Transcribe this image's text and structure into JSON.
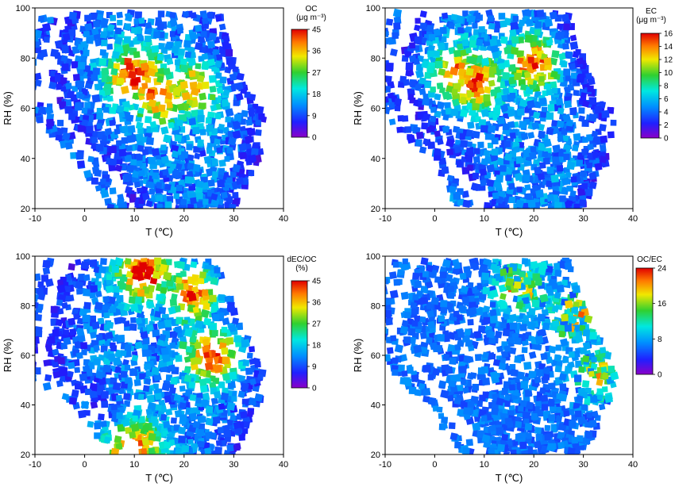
{
  "chart_data": [
    {
      "type": "scatter",
      "panel": "top-left",
      "xlabel": "T (℃)",
      "ylabel": "RH (%)",
      "xlim": [
        -10,
        40
      ],
      "ylim": [
        20,
        100
      ],
      "xticks": [
        "-10",
        "0",
        "10",
        "20",
        "30",
        "40"
      ],
      "yticks": [
        "20",
        "40",
        "60",
        "80",
        "100"
      ],
      "colorbar": {
        "title_lines": [
          "OC",
          "(μg m⁻³)"
        ],
        "range": [
          0,
          45
        ],
        "ticks": [
          "0",
          "9",
          "18",
          "27",
          "36",
          "45"
        ]
      },
      "footprint": {
        "rh": [
          20,
          40,
          55,
          70,
          85,
          98
        ],
        "tmin": [
          11,
          4,
          -3,
          -7,
          -6,
          -3
        ],
        "tmax": [
          30,
          35,
          37,
          32,
          29,
          27
        ]
      },
      "hot_spots": [
        {
          "t": 10,
          "rh": 73,
          "v": 38
        },
        {
          "t": 15,
          "rh": 65,
          "v": 33
        },
        {
          "t": 22,
          "rh": 68,
          "v": 28
        }
      ]
    },
    {
      "type": "scatter",
      "panel": "top-right",
      "xlabel": "T (℃)",
      "ylabel": "RH (%)",
      "xlim": [
        -10,
        40
      ],
      "ylim": [
        20,
        100
      ],
      "xticks": [
        "-10",
        "0",
        "10",
        "20",
        "30",
        "40"
      ],
      "yticks": [
        "20",
        "40",
        "60",
        "80",
        "100"
      ],
      "colorbar": {
        "title_lines": [
          "EC",
          "(μg m⁻³)"
        ],
        "range": [
          0,
          16
        ],
        "ticks": [
          "0",
          "2",
          "4",
          "6",
          "8",
          "10",
          "12",
          "14",
          "16"
        ]
      },
      "footprint": {
        "rh": [
          20,
          40,
          55,
          70,
          85,
          98
        ],
        "tmin": [
          11,
          4,
          -3,
          -7,
          -6,
          -3
        ],
        "tmax": [
          30,
          35,
          37,
          32,
          29,
          27
        ]
      },
      "hot_spots": [
        {
          "t": 8,
          "rh": 70,
          "v": 13
        },
        {
          "t": 20,
          "rh": 78,
          "v": 12
        },
        {
          "t": 4,
          "rh": 75,
          "v": 10
        }
      ]
    },
    {
      "type": "scatter",
      "panel": "bottom-left",
      "xlabel": "T (℃)",
      "ylabel": "RH (%)",
      "xlim": [
        -10,
        40
      ],
      "ylim": [
        20,
        100
      ],
      "xticks": [
        "-10",
        "0",
        "10",
        "20",
        "30",
        "40"
      ],
      "yticks": [
        "20",
        "40",
        "60",
        "80",
        "100"
      ],
      "colorbar": {
        "title_lines": [
          "dEC/OC",
          "(%)"
        ],
        "range": [
          0,
          45
        ],
        "ticks": [
          "0",
          "9",
          "18",
          "27",
          "36",
          "45"
        ]
      },
      "footprint": {
        "rh": [
          20,
          40,
          55,
          70,
          85,
          98
        ],
        "tmin": [
          11,
          4,
          -8,
          -7,
          -6,
          -3
        ],
        "tmax": [
          30,
          35,
          37,
          32,
          29,
          27
        ]
      },
      "hot_spots": [
        {
          "t": 12,
          "rh": 93,
          "v": 40
        },
        {
          "t": 26,
          "rh": 60,
          "v": 38
        },
        {
          "t": 10,
          "rh": 23,
          "v": 40
        },
        {
          "t": 22,
          "rh": 85,
          "v": 34
        }
      ]
    },
    {
      "type": "scatter",
      "panel": "bottom-right",
      "xlabel": "T (℃)",
      "ylabel": "RH (%)",
      "xlim": [
        -10,
        40
      ],
      "ylim": [
        20,
        100
      ],
      "xticks": [
        "-10",
        "0",
        "10",
        "20",
        "30",
        "40"
      ],
      "yticks": [
        "20",
        "40",
        "60",
        "80",
        "100"
      ],
      "colorbar": {
        "title_lines": [
          "OC/EC"
        ],
        "range": [
          0,
          24
        ],
        "ticks": [
          "0",
          "8",
          "16",
          "24"
        ]
      },
      "footprint": {
        "rh": [
          20,
          40,
          55,
          70,
          85,
          98
        ],
        "tmin": [
          11,
          4,
          -3,
          -7,
          -6,
          -3
        ],
        "tmax": [
          30,
          35,
          37,
          32,
          29,
          27
        ]
      },
      "hot_spots": [
        {
          "t": 17,
          "rh": 88,
          "v": 22
        },
        {
          "t": 28,
          "rh": 76,
          "v": 20
        },
        {
          "t": 33,
          "rh": 52,
          "v": 18
        }
      ]
    }
  ],
  "colors": {
    "jet": [
      "#7e00b0",
      "#1d1dff",
      "#0090ff",
      "#00e8e0",
      "#30d030",
      "#f0e800",
      "#ff7a00",
      "#e00000"
    ]
  }
}
